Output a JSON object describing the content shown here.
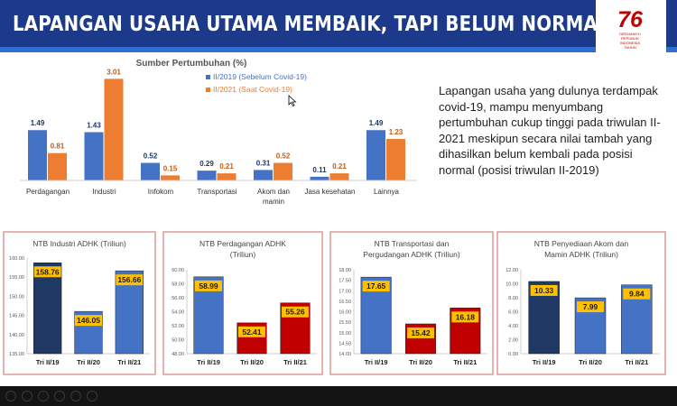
{
  "header": {
    "title": "LAPANGAN USAHA UTAMA MEMBAIK, TAPI BELUM NORMAL"
  },
  "logo": {
    "number": "76",
    "lines": [
      "DIRGAHAYU",
      "REPUBLIK",
      "INDONESIA",
      "TAHUN"
    ]
  },
  "description": "Lapangan usaha yang dulunya terdampak covid-19, mampu menyumbang pertumbuhan cukup tinggi pada triwulan II-2021 meskipun secara nilai tambah yang dihasilkan belum kembali pada posisi normal (posisi triwulan II-2019)",
  "colors": {
    "blue": "#4472c4",
    "orange": "#ed7d31",
    "navy": "#1f3864",
    "red": "#c00000",
    "yellow": "#ffc000",
    "header": "#1d3a8a",
    "panel_border": "#d98a8a"
  },
  "chart_data": [
    {
      "type": "bar",
      "title": "Sumber Pertumbuhan (%)",
      "categories": [
        "Perdagangan",
        "Industri",
        "Infokom",
        "Transportasi",
        "Akom dan mamin",
        "Jasa kesehatan",
        "Lainnya"
      ],
      "series": [
        {
          "name": "II/2019 (Sebelum Covid-19)",
          "color": "#4472c4",
          "values": [
            1.49,
            1.43,
            0.52,
            0.29,
            0.31,
            0.11,
            1.49
          ]
        },
        {
          "name": "II/2021 (Saat Covid-19)",
          "color": "#ed7d31",
          "values": [
            0.81,
            3.01,
            0.15,
            0.21,
            0.52,
            0.21,
            1.23
          ]
        }
      ],
      "legend": "top",
      "grid": false
    },
    {
      "type": "bar",
      "title": "NTB Industri ADHK (Triliun)",
      "categories": [
        "Tri II/19",
        "Tri II/20",
        "Tri II/21"
      ],
      "values": [
        158.76,
        146.05,
        156.66
      ],
      "colors": [
        "#1f3864",
        "#4472c4",
        "#4472c4"
      ],
      "ylim": [
        135,
        160
      ],
      "yticks": [
        "135.00",
        "140.00",
        "145.00",
        "150.00",
        "155.00",
        "160.00"
      ]
    },
    {
      "type": "bar",
      "title": "NTB Perdagangan ADHK (Triliun)",
      "categories": [
        "Tri II/19",
        "Tri II/20",
        "Tri II/21"
      ],
      "values": [
        58.99,
        52.41,
        55.26
      ],
      "colors": [
        "#4472c4",
        "#c00000",
        "#c00000"
      ],
      "ylim": [
        48,
        60
      ],
      "yticks": [
        "48.00",
        "50.00",
        "52.00",
        "54.00",
        "56.00",
        "58.00",
        "60.00"
      ]
    },
    {
      "type": "bar",
      "title": "NTB Transportasi dan Pergudangan ADHK (Triliun)",
      "categories": [
        "Tri II/19",
        "Tri II/20",
        "Tri II/21"
      ],
      "values": [
        17.65,
        15.42,
        16.18
      ],
      "colors": [
        "#4472c4",
        "#c00000",
        "#c00000"
      ],
      "ylim": [
        14,
        18
      ],
      "yticks": [
        "14.00",
        "14.50",
        "15.00",
        "15.50",
        "16.00",
        "16.50",
        "17.00",
        "17.50",
        "18.00"
      ]
    },
    {
      "type": "bar",
      "title": "NTB Penyediaan Akom dan Mamin ADHK (Triliun)",
      "categories": [
        "Tri II/19",
        "Tri II/20",
        "Tri II/21"
      ],
      "values": [
        10.33,
        7.99,
        9.84
      ],
      "colors": [
        "#1f3864",
        "#4472c4",
        "#4472c4"
      ],
      "ylim": [
        0,
        12
      ],
      "yticks": [
        "0.00",
        "2.00",
        "4.00",
        "6.00",
        "8.00",
        "10.00",
        "12.00"
      ]
    }
  ]
}
